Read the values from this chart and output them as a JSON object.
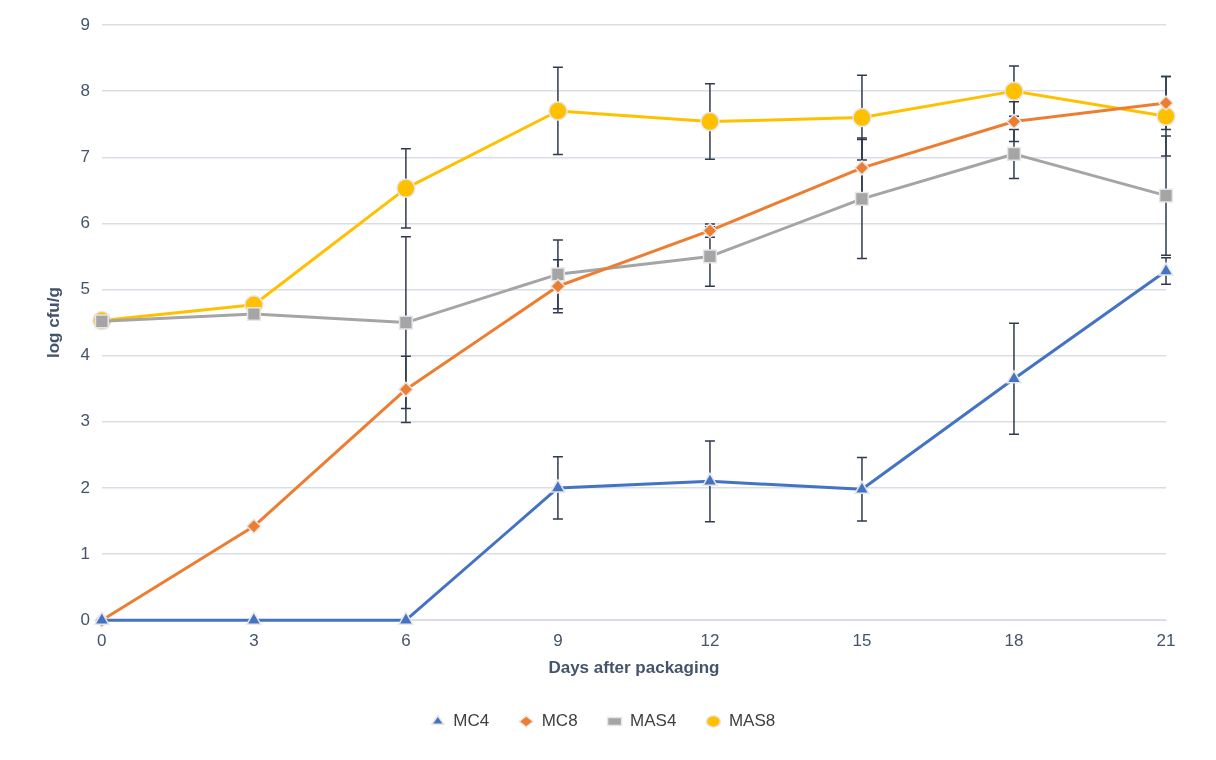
{
  "chart_data": {
    "type": "line",
    "xlabel": "Days after packaging",
    "ylabel": "log cfu/g",
    "x": [
      0,
      3,
      6,
      9,
      12,
      15,
      18,
      21
    ],
    "xlim": [
      0,
      21
    ],
    "xticks": [
      0,
      3,
      6,
      9,
      12,
      15,
      18,
      21
    ],
    "ylim": [
      0,
      9
    ],
    "yticks": [
      0,
      1,
      2,
      3,
      4,
      5,
      6,
      7,
      8,
      9
    ],
    "grid": "y",
    "legend": "bottom",
    "line_style": "solid",
    "series": [
      {
        "name": "MC4",
        "color": "#4472c4",
        "marker": "triangle",
        "values": [
          0,
          0,
          0,
          2.0,
          2.1,
          1.98,
          3.65,
          5.28
        ],
        "errors": [
          null,
          null,
          null,
          0.47,
          0.61,
          0.48,
          0.84,
          0.2
        ]
      },
      {
        "name": "MC8",
        "color": "#ed7d31",
        "marker": "diamond",
        "values": [
          0,
          1.42,
          3.49,
          5.05,
          5.89,
          6.84,
          7.54,
          7.82
        ],
        "errors": [
          null,
          null,
          0.5,
          0.4,
          0.1,
          0.45,
          0.3,
          0.4
        ]
      },
      {
        "name": "MAS4",
        "color": "#a5a5a5",
        "marker": "square",
        "values": [
          4.52,
          4.63,
          4.5,
          5.23,
          5.5,
          6.37,
          7.05,
          6.42
        ],
        "errors": [
          null,
          null,
          1.3,
          0.52,
          0.45,
          0.9,
          0.37,
          0.9
        ]
      },
      {
        "name": "MAS8",
        "color": "#ffc000",
        "marker": "circle",
        "values": [
          4.53,
          4.77,
          6.53,
          7.7,
          7.54,
          7.6,
          8.0,
          7.62
        ],
        "errors": [
          null,
          null,
          0.6,
          0.66,
          0.57,
          0.64,
          0.38,
          0.6
        ]
      }
    ]
  }
}
